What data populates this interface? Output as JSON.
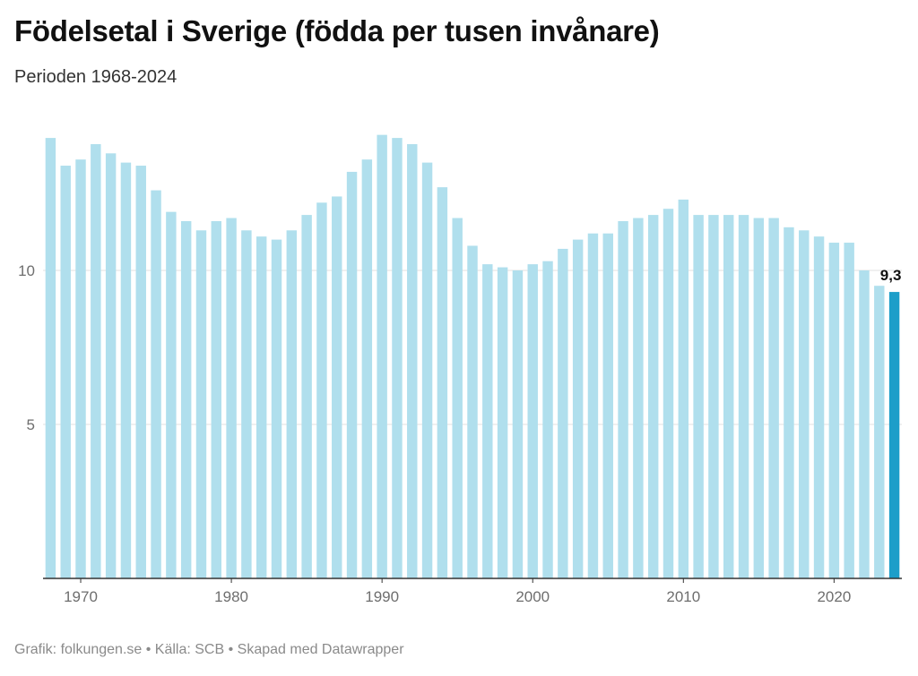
{
  "header": {
    "title": "Födelsetal i Sverige (födda per tusen invånare)",
    "subtitle": "Perioden 1968-2024"
  },
  "footer": {
    "source": "Grafik: folkungen.se • Källa: SCB • Skapad med Datawrapper"
  },
  "chart_data": {
    "type": "bar",
    "categories": [
      1968,
      1969,
      1970,
      1971,
      1972,
      1973,
      1974,
      1975,
      1976,
      1977,
      1978,
      1979,
      1980,
      1981,
      1982,
      1983,
      1984,
      1985,
      1986,
      1987,
      1988,
      1989,
      1990,
      1991,
      1992,
      1993,
      1994,
      1995,
      1996,
      1997,
      1998,
      1999,
      2000,
      2001,
      2002,
      2003,
      2004,
      2005,
      2006,
      2007,
      2008,
      2009,
      2010,
      2011,
      2012,
      2013,
      2014,
      2015,
      2016,
      2017,
      2018,
      2019,
      2020,
      2021,
      2022,
      2023,
      2024
    ],
    "values": [
      14.3,
      13.4,
      13.6,
      14.1,
      13.8,
      13.5,
      13.4,
      12.6,
      11.9,
      11.6,
      11.3,
      11.6,
      11.7,
      11.3,
      11.1,
      11.0,
      11.3,
      11.8,
      12.2,
      12.4,
      13.2,
      13.6,
      14.4,
      14.3,
      14.1,
      13.5,
      12.7,
      11.7,
      10.8,
      10.2,
      10.1,
      10.0,
      10.2,
      10.3,
      10.7,
      11.0,
      11.2,
      11.2,
      11.6,
      11.7,
      11.8,
      12.0,
      12.3,
      11.8,
      11.8,
      11.8,
      11.8,
      11.7,
      11.7,
      11.4,
      11.3,
      11.1,
      10.9,
      10.9,
      10.0,
      9.5,
      9.3
    ],
    "ylim": [
      0,
      14.5
    ],
    "yticks": [
      5,
      10
    ],
    "ytick_labels": [
      "5",
      "10"
    ],
    "xticks": [
      1970,
      1980,
      1990,
      2000,
      2010,
      2020
    ],
    "xtick_labels": [
      "1970",
      "1980",
      "1990",
      "2000",
      "2010",
      "2020"
    ],
    "highlight_label": "9,3",
    "highlight_index": 56,
    "grid": true,
    "colors": {
      "bar": "#b0dfed",
      "highlight": "#1d9ec9",
      "grid": "#e2e2e2",
      "axis": "#333333",
      "tick_text": "#6e6e6e",
      "label_text": "#111111"
    }
  }
}
